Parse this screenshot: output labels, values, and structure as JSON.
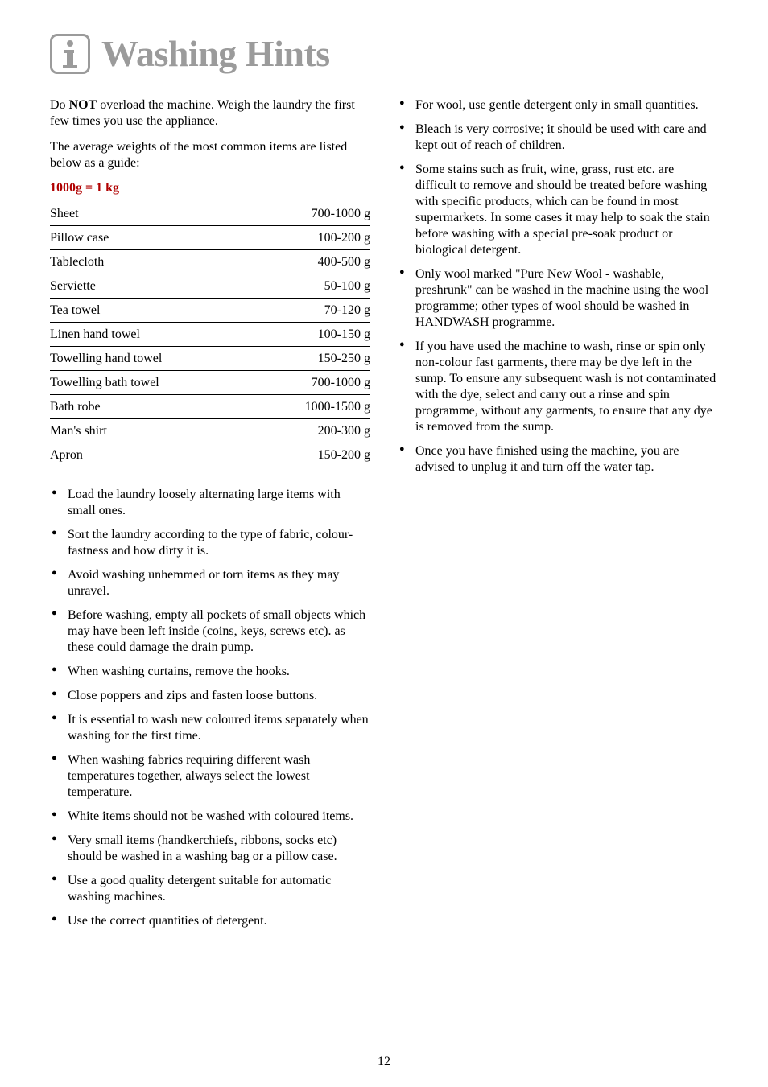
{
  "title": "Washing Hints",
  "intro1_pre": "Do ",
  "intro1_bold": "NOT",
  "intro1_post": " overload the machine. Weigh the laundry the first few times you use the appliance.",
  "intro2": "The average weights of the most common items are listed below as a guide:",
  "subhead": "1000g = 1 kg",
  "weights": {
    "rows": [
      {
        "item": "Sheet",
        "val": "700-1000 g"
      },
      {
        "item": "Pillow case",
        "val": "100-200 g"
      },
      {
        "item": "Tablecloth",
        "val": "400-500 g"
      },
      {
        "item": "Serviette",
        "val": "50-100 g"
      },
      {
        "item": "Tea towel",
        "val": "70-120 g"
      },
      {
        "item": "Linen hand towel",
        "val": "100-150 g"
      },
      {
        "item": "Towelling hand towel",
        "val": "150-250 g"
      },
      {
        "item": "Towelling bath towel",
        "val": "700-1000 g"
      },
      {
        "item": "Bath robe",
        "val": "1000-1500 g"
      },
      {
        "item": "Man's shirt",
        "val": "200-300 g"
      },
      {
        "item": "Apron",
        "val": "150-200 g"
      }
    ]
  },
  "left_bullets": [
    "Load the laundry loosely alternating large items with small ones.",
    "Sort the laundry according to the type of fabric, colour-fastness and how dirty it is.",
    "Avoid washing unhemmed or torn items as they may unravel.",
    "Before washing, empty all pockets of small objects which may have been left inside (coins, keys, screws etc). as these could damage the drain pump.",
    "When washing curtains, remove the hooks.",
    "Close poppers and zips and fasten loose buttons.",
    "It is essential to wash new coloured items separately when washing for the first time.",
    "When washing fabrics requiring different wash temperatures together, always select the lowest temperature.",
    "White items should not be washed with coloured items.",
    "Very small items (handkerchiefs, ribbons, socks etc) should be washed in a washing bag or a pillow case.",
    "Use a good quality detergent suitable for automatic washing machines.",
    "Use the correct quantities of detergent."
  ],
  "right_bullets": [
    "For wool, use gentle detergent only in small quantities.",
    "Bleach is very corrosive; it should be used with care and kept out of reach of children.",
    "Some stains such as fruit, wine, grass, rust etc. are difficult to remove and should be treated before washing with specific products, which can be found in most supermarkets. In some cases it may help to soak the stain before washing with a special pre-soak product or biological detergent.",
    "Only wool marked \"Pure New Wool - washable, preshrunk\" can be washed in the machine using the wool programme; other types of wool should be washed in HANDWASH programme.",
    "If you have used the machine to wash, rinse or spin only non-colour fast garments, there may be dye left in the sump. To ensure any subsequent wash is not contaminated with the dye, select and carry out a rinse and spin programme, without any garments, to ensure that any dye is removed from the sump.",
    "Once you have finished using the machine, you are advised to unplug it and turn off the water tap."
  ],
  "page_num": "12"
}
